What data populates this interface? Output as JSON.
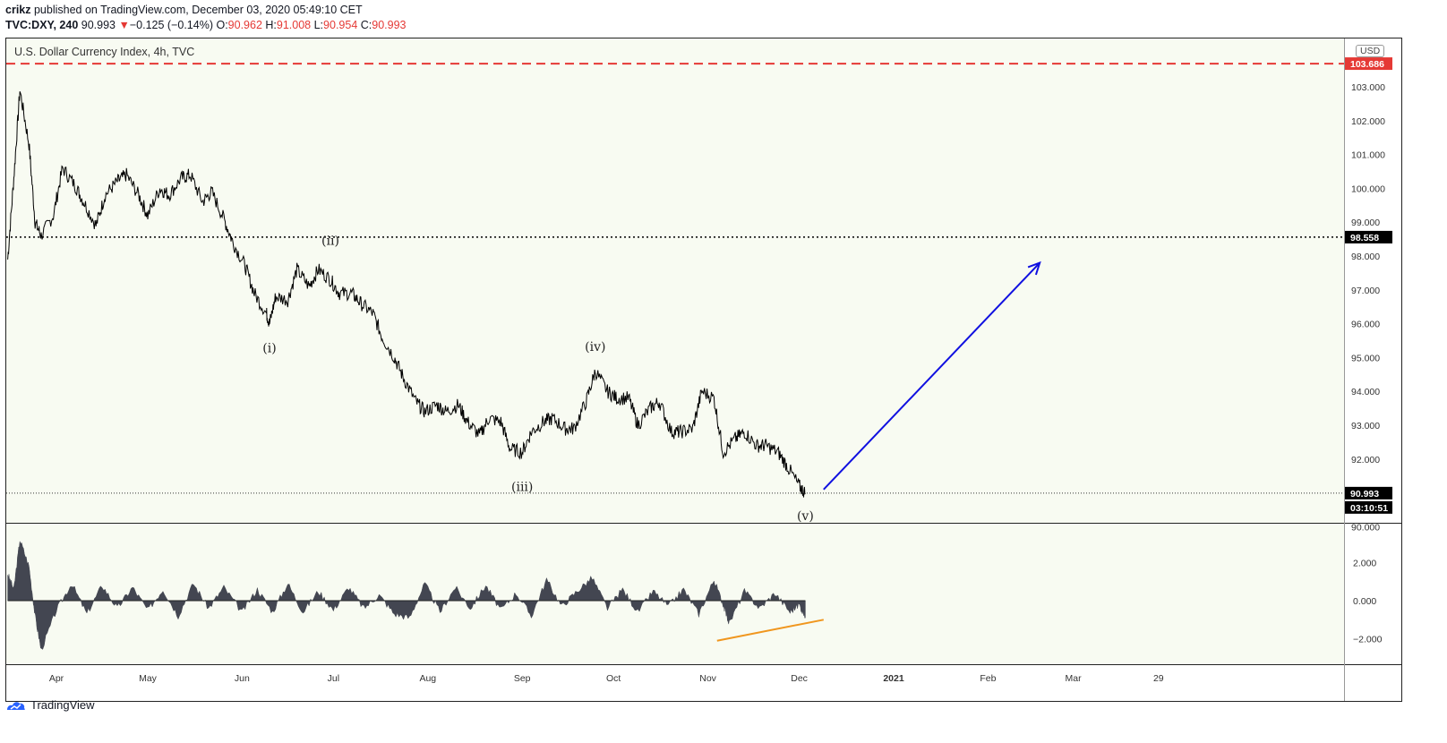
{
  "header": {
    "user": "crikz",
    "published_text": " published on TradingView.com, December 03, 2020 05:49:10 CET",
    "symbol": "TVC:DXY, 240",
    "last": "90.993",
    "change_arrow": "▼",
    "change": "−0.125 (−0.14%)",
    "o_label": "O:",
    "o": "90.962",
    "h_label": "H:",
    "h": "91.008",
    "l_label": "L:",
    "l": "90.954",
    "c_label": "C:",
    "c": "90.993"
  },
  "chart_title": "U.S. Dollar Currency Index, 4h, TVC",
  "currency_badge": "USD",
  "footer": {
    "brand": "TradingView"
  },
  "chart_data": {
    "type": "line",
    "title": "U.S. Dollar Currency Index, 4h, TVC",
    "main_pane": {
      "y_ticks": [
        "103.000",
        "102.000",
        "101.000",
        "100.000",
        "99.000",
        "98.000",
        "97.000",
        "96.000",
        "95.000",
        "94.000",
        "93.000",
        "92.000",
        "91.000",
        "90.000"
      ],
      "ylim": [
        89.6,
        104.2
      ],
      "series": [
        {
          "x": [
            "2020-03-16",
            "2020-03-18",
            "2020-03-20",
            "2020-03-23",
            "2020-03-25",
            "2020-03-27",
            "2020-03-31",
            "2020-04-03",
            "2020-04-07",
            "2020-04-10",
            "2020-04-14",
            "2020-04-17",
            "2020-04-21",
            "2020-04-24",
            "2020-04-28",
            "2020-05-01",
            "2020-05-05",
            "2020-05-08",
            "2020-05-12",
            "2020-05-15",
            "2020-05-19",
            "2020-05-22",
            "2020-05-26",
            "2020-05-29",
            "2020-06-02",
            "2020-06-05",
            "2020-06-09",
            "2020-06-10",
            "2020-06-12",
            "2020-06-16",
            "2020-06-19",
            "2020-06-23",
            "2020-06-26",
            "2020-06-30",
            "2020-07-03",
            "2020-07-07",
            "2020-07-10",
            "2020-07-14",
            "2020-07-17",
            "2020-07-21",
            "2020-07-24",
            "2020-07-28",
            "2020-07-31",
            "2020-08-04",
            "2020-08-07",
            "2020-08-11",
            "2020-08-14",
            "2020-08-18",
            "2020-08-21",
            "2020-08-25",
            "2020-08-28",
            "2020-09-01",
            "2020-09-04",
            "2020-09-08",
            "2020-09-11",
            "2020-09-15",
            "2020-09-18",
            "2020-09-22",
            "2020-09-25",
            "2020-09-29",
            "2020-10-02",
            "2020-10-06",
            "2020-10-09",
            "2020-10-13",
            "2020-10-16",
            "2020-10-20",
            "2020-10-23",
            "2020-10-27",
            "2020-10-30",
            "2020-11-03",
            "2020-11-06",
            "2020-11-10",
            "2020-11-13",
            "2020-11-17",
            "2020-11-20",
            "2020-11-24",
            "2020-11-27",
            "2020-12-01",
            "2020-12-03"
          ],
          "y": [
            97.9,
            100.3,
            102.9,
            101.3,
            99.0,
            98.6,
            99.2,
            100.6,
            100.1,
            99.6,
            98.9,
            99.8,
            100.2,
            100.4,
            99.8,
            99.2,
            100.0,
            99.8,
            100.3,
            100.4,
            99.6,
            99.9,
            99.1,
            98.4,
            97.7,
            96.9,
            96.3,
            96.0,
            96.8,
            96.7,
            97.6,
            97.1,
            97.6,
            97.3,
            96.9,
            96.9,
            96.6,
            96.3,
            95.6,
            95.0,
            94.4,
            93.7,
            93.4,
            93.6,
            93.4,
            93.6,
            93.1,
            92.7,
            93.2,
            93.1,
            92.3,
            92.2,
            92.8,
            93.1,
            93.2,
            92.9,
            92.9,
            93.7,
            94.6,
            94.0,
            93.8,
            93.8,
            93.0,
            93.5,
            93.7,
            92.8,
            92.8,
            92.9,
            94.0,
            93.8,
            92.2,
            92.6,
            92.8,
            92.4,
            92.4,
            92.2,
            91.8,
            91.2,
            90.99
          ]
        }
      ],
      "last_price": "90.993",
      "countdown": "03:10:51",
      "levels": [
        {
          "value": 103.686,
          "label": "103.686",
          "style": "red dashed",
          "color": "#e53935"
        },
        {
          "value": 98.558,
          "label": "98.558",
          "style": "black dotted",
          "color": "#000000"
        }
      ],
      "wave_labels": [
        {
          "text": "(i)",
          "x": "2020-06-10",
          "y": 95.15
        },
        {
          "text": "(ii)",
          "x": "2020-06-30",
          "y": 98.33
        },
        {
          "text": "(iii)",
          "x": "2020-09-01",
          "y": 91.05
        },
        {
          "text": "(iv)",
          "x": "2020-09-25",
          "y": 95.2
        },
        {
          "text": "(v)",
          "x": "2020-12-03",
          "y": 90.2
        }
      ],
      "projection_arrow": {
        "from": {
          "x": "2020-12-09",
          "y": 91.1
        },
        "to": {
          "x": "2021-02-18",
          "y": 97.8
        },
        "color": "#1010e0"
      }
    },
    "oscillator_pane": {
      "y_ticks": [
        "2.000",
        "0.000",
        "−2.000"
      ],
      "ylim": [
        -3.2,
        3.3
      ],
      "series": [
        {
          "x": [
            "2020-03-16",
            "2020-03-18",
            "2020-03-20",
            "2020-03-23",
            "2020-03-25",
            "2020-03-27",
            "2020-04-01",
            "2020-04-06",
            "2020-04-11",
            "2020-04-16",
            "2020-04-21",
            "2020-04-26",
            "2020-05-01",
            "2020-05-06",
            "2020-05-11",
            "2020-05-16",
            "2020-05-21",
            "2020-05-26",
            "2020-06-01",
            "2020-06-06",
            "2020-06-11",
            "2020-06-16",
            "2020-06-21",
            "2020-06-26",
            "2020-07-01",
            "2020-07-06",
            "2020-07-11",
            "2020-07-16",
            "2020-07-21",
            "2020-07-26",
            "2020-07-31",
            "2020-08-05",
            "2020-08-10",
            "2020-08-15",
            "2020-08-20",
            "2020-08-25",
            "2020-08-30",
            "2020-09-04",
            "2020-09-09",
            "2020-09-14",
            "2020-09-19",
            "2020-09-24",
            "2020-09-29",
            "2020-10-04",
            "2020-10-09",
            "2020-10-14",
            "2020-10-19",
            "2020-10-24",
            "2020-10-29",
            "2020-11-03",
            "2020-11-06",
            "2020-11-08",
            "2020-11-13",
            "2020-11-18",
            "2020-11-23",
            "2020-11-28",
            "2020-12-01",
            "2020-12-03"
          ],
          "y": [
            1.4,
            0.6,
            3.2,
            1.8,
            -0.8,
            -2.6,
            -0.5,
            0.9,
            -0.7,
            0.8,
            -0.4,
            0.7,
            -0.5,
            0.6,
            -0.8,
            0.9,
            -0.4,
            0.7,
            -0.6,
            0.6,
            -0.6,
            0.9,
            -0.6,
            0.5,
            -0.5,
            0.7,
            -0.4,
            0.3,
            -0.7,
            -0.9,
            0.9,
            -0.6,
            0.7,
            -0.4,
            0.8,
            -0.5,
            0.4,
            -0.8,
            1.1,
            -0.3,
            0.5,
            1.2,
            -0.4,
            0.6,
            -0.6,
            0.5,
            -0.3,
            0.6,
            -0.7,
            1.1,
            -0.2,
            -1.2,
            0.5,
            -0.4,
            0.4,
            -0.6,
            -0.2,
            -0.9
          ]
        }
      ],
      "divergence_line": {
        "from": {
          "x": "2020-11-04",
          "y": -2.1
        },
        "to": {
          "x": "2020-12-09",
          "y": -1.0
        },
        "color": "#f0961e"
      }
    },
    "x_ticks": [
      "Apr",
      "May",
      "Jun",
      "Jul",
      "Aug",
      "Sep",
      "Oct",
      "Nov",
      "Dec",
      "2021",
      "Feb",
      "Mar",
      "29"
    ],
    "grid": false,
    "colors": {
      "price": "#000000",
      "oscillator": "#434651",
      "background": "#f8fbf2"
    }
  }
}
